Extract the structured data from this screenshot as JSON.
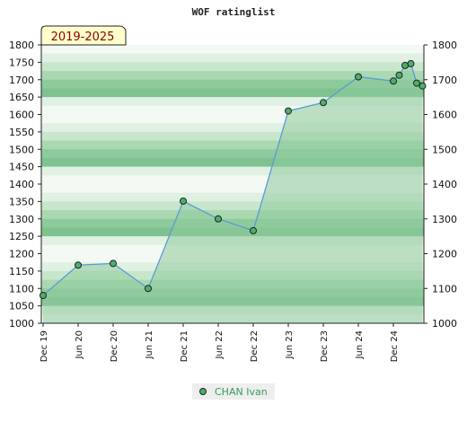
{
  "chart_data": {
    "type": "area",
    "title": "WOF ratinglist",
    "badge": "2019-2025",
    "ylim": [
      1000,
      1800
    ],
    "y_ticks": [
      1000,
      1050,
      1100,
      1150,
      1200,
      1250,
      1300,
      1350,
      1400,
      1450,
      1500,
      1550,
      1600,
      1650,
      1700,
      1750,
      1800
    ],
    "y_ticks_right": [
      1000,
      1100,
      1200,
      1300,
      1400,
      1500,
      1600,
      1700,
      1800
    ],
    "x_ticks": [
      "Dec 19",
      "Jun 20",
      "Dec 20",
      "Jun 21",
      "Dec 21",
      "Jun 22",
      "Dec 22",
      "Jun 23",
      "Dec 23",
      "Jun 24",
      "Dec 24"
    ],
    "x_tick_months": [
      "2019-12",
      "2020-06",
      "2020-12",
      "2021-06",
      "2021-12",
      "2022-06",
      "2022-12",
      "2023-06",
      "2023-12",
      "2024-06",
      "2024-12"
    ],
    "grid": true,
    "legend_position": "bottom-center",
    "colors": {
      "line": "#5b9bd5",
      "marker": "#4caf6a",
      "area": "#8ecb9c",
      "badge_bg": "#ffffcc",
      "legend_text": "#3a9a58"
    },
    "series": [
      {
        "name": "CHAN Ivan",
        "x": [
          "2019-12",
          "2020-06",
          "2020-12",
          "2021-06",
          "2021-12",
          "2022-06",
          "2022-12",
          "2023-06",
          "2023-12",
          "2024-06",
          "2024-12",
          "2025-01",
          "2025-02",
          "2025-03",
          "2025-04",
          "2025-05"
        ],
        "values": [
          1080,
          1167,
          1172,
          1100,
          1351,
          1300,
          1266,
          1610,
          1634,
          1708,
          1696,
          1713,
          1741,
          1746,
          1690,
          1682
        ]
      }
    ]
  }
}
